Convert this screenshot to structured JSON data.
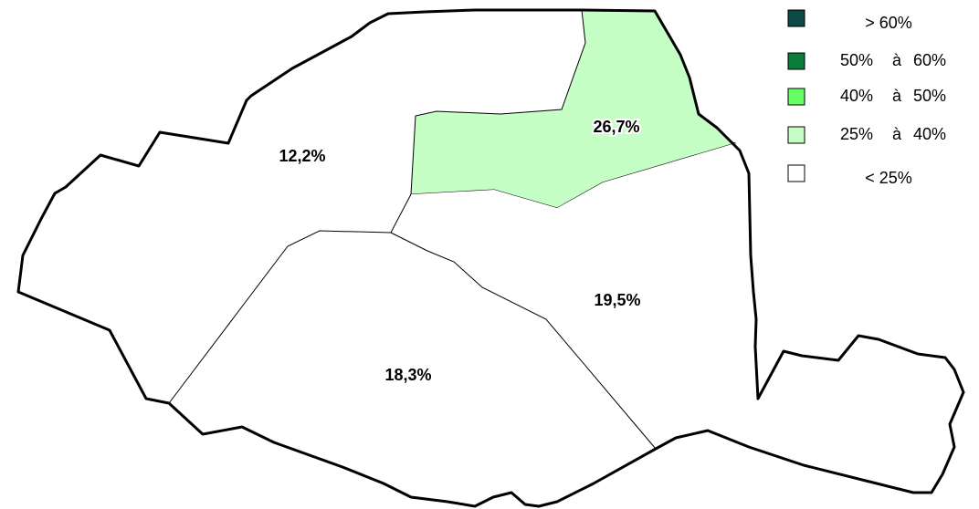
{
  "regions": [
    {
      "label": "12,2%",
      "color": "#ffffff"
    },
    {
      "label": "26,7%",
      "color": "#c6ffc6"
    },
    {
      "label": "19,5%",
      "color": "#ffffff"
    },
    {
      "label": "18,3%",
      "color": "#ffffff"
    }
  ],
  "legend": [
    {
      "color": "#0b4a45",
      "text": "> 60%"
    },
    {
      "color": "#0a7d3d",
      "parts": [
        "50%",
        "à",
        "60%"
      ]
    },
    {
      "color": "#66ff66",
      "parts": [
        "40%",
        "à",
        "50%"
      ]
    },
    {
      "color": "#c6ffc6",
      "parts": [
        "25%",
        "à",
        "40%"
      ]
    },
    {
      "color": "#ffffff",
      "text": "< 25%"
    }
  ]
}
